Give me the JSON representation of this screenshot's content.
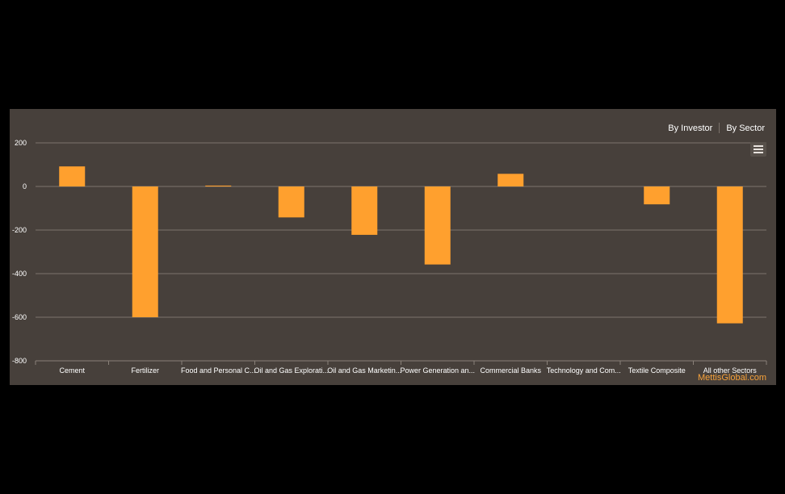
{
  "tabs": [
    "By Investor",
    "By Sector"
  ],
  "credit": "MettisGlobal.com",
  "colors": {
    "bar": "#ffa02e",
    "background": "#47403b",
    "page": "#000000"
  },
  "icons": {
    "menu": "hamburger-menu-icon"
  },
  "chart_data": {
    "type": "bar",
    "categories": [
      "Cement",
      "Fertilizer",
      "Food and Personal C...",
      "Oil and Gas Explorati...",
      "Oil and Gas Marketin...",
      "Power Generation an...",
      "Commercial Banks",
      "Technology and Com...",
      "Textile Composite",
      "All other Sectors"
    ],
    "values": [
      92,
      -600,
      4,
      -142,
      -222,
      -358,
      58,
      0,
      -82,
      -628
    ],
    "ylim": [
      -800,
      200
    ],
    "yticks": [
      200,
      0,
      -200,
      -400,
      -600,
      -800
    ],
    "title": "",
    "xlabel": "",
    "ylabel": "",
    "grid": true
  }
}
